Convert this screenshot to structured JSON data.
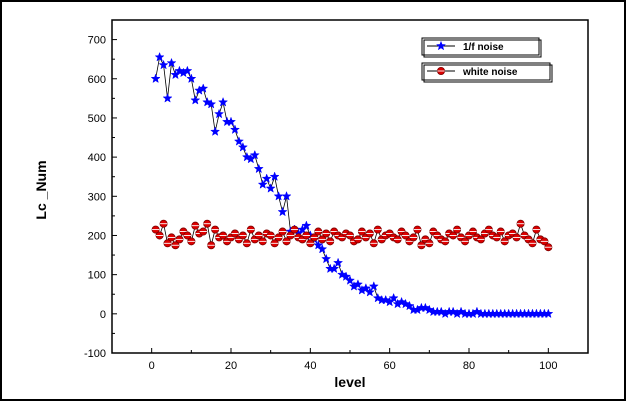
{
  "chart_data": {
    "type": "scatter",
    "xlabel": "level",
    "ylabel": "Lc _Num",
    "xlim": [
      -10,
      110
    ],
    "ylim": [
      -100,
      750
    ],
    "xticks": [
      0,
      20,
      40,
      60,
      80,
      100
    ],
    "yticks": [
      -100,
      0,
      100,
      200,
      300,
      400,
      500,
      600,
      700
    ],
    "legend_position": "top-right",
    "grid": false,
    "series": [
      {
        "name": "1/f noise",
        "marker": "star",
        "color": "#0000ff",
        "line_color": "#000000",
        "x": [
          1,
          2,
          3,
          4,
          5,
          6,
          7,
          8,
          9,
          10,
          11,
          12,
          13,
          14,
          15,
          16,
          17,
          18,
          19,
          20,
          21,
          22,
          23,
          24,
          25,
          26,
          27,
          28,
          29,
          30,
          31,
          32,
          33,
          34,
          35,
          36,
          37,
          38,
          39,
          40,
          41,
          42,
          43,
          44,
          45,
          46,
          47,
          48,
          49,
          50,
          51,
          52,
          53,
          54,
          55,
          56,
          57,
          58,
          59,
          60,
          61,
          62,
          63,
          64,
          65,
          66,
          67,
          68,
          69,
          70,
          71,
          72,
          73,
          74,
          75,
          76,
          77,
          78,
          79,
          80,
          81,
          82,
          83,
          84,
          85,
          86,
          87,
          88,
          89,
          90,
          91,
          92,
          93,
          94,
          95,
          96,
          97,
          98,
          99,
          100
        ],
        "y": [
          600,
          655,
          635,
          550,
          640,
          610,
          620,
          615,
          620,
          600,
          545,
          570,
          575,
          540,
          535,
          465,
          510,
          540,
          490,
          490,
          470,
          440,
          425,
          400,
          395,
          405,
          370,
          330,
          345,
          320,
          350,
          300,
          260,
          300,
          210,
          215,
          205,
          215,
          225,
          200,
          190,
          175,
          165,
          140,
          115,
          115,
          130,
          100,
          95,
          85,
          70,
          75,
          60,
          65,
          55,
          70,
          40,
          35,
          35,
          30,
          40,
          25,
          30,
          25,
          20,
          10,
          10,
          15,
          15,
          10,
          5,
          5,
          5,
          0,
          5,
          5,
          0,
          5,
          0,
          0,
          0,
          5,
          0,
          0,
          0,
          0,
          0,
          0,
          0,
          0,
          0,
          0,
          0,
          0,
          0,
          0,
          0,
          0,
          0,
          0
        ]
      },
      {
        "name": "white noise",
        "marker": "circle",
        "color": "#dd0000",
        "line_color": "#000000",
        "x": [
          1,
          2,
          3,
          4,
          5,
          6,
          7,
          8,
          9,
          10,
          11,
          12,
          13,
          14,
          15,
          16,
          17,
          18,
          19,
          20,
          21,
          22,
          23,
          24,
          25,
          26,
          27,
          28,
          29,
          30,
          31,
          32,
          33,
          34,
          35,
          36,
          37,
          38,
          39,
          40,
          41,
          42,
          43,
          44,
          45,
          46,
          47,
          48,
          49,
          50,
          51,
          52,
          53,
          54,
          55,
          56,
          57,
          58,
          59,
          60,
          61,
          62,
          63,
          64,
          65,
          66,
          67,
          68,
          69,
          70,
          71,
          72,
          73,
          74,
          75,
          76,
          77,
          78,
          79,
          80,
          81,
          82,
          83,
          84,
          85,
          86,
          87,
          88,
          89,
          90,
          91,
          92,
          93,
          94,
          95,
          96,
          97,
          98,
          99,
          100
        ],
        "y": [
          215,
          200,
          230,
          180,
          195,
          175,
          190,
          210,
          200,
          185,
          225,
          205,
          210,
          230,
          175,
          215,
          195,
          200,
          185,
          195,
          205,
          190,
          200,
          180,
          215,
          190,
          200,
          185,
          205,
          200,
          180,
          195,
          210,
          185,
          200,
          215,
          195,
          190,
          200,
          180,
          195,
          210,
          190,
          205,
          185,
          210,
          200,
          195,
          205,
          200,
          185,
          190,
          210,
          195,
          205,
          180,
          215,
          190,
          200,
          205,
          195,
          190,
          210,
          200,
          185,
          195,
          215,
          175,
          190,
          180,
          210,
          200,
          190,
          185,
          205,
          200,
          215,
          195,
          185,
          200,
          210,
          195,
          190,
          205,
          215,
          200,
          195,
          210,
          185,
          200,
          205,
          195,
          230,
          200,
          190,
          180,
          215,
          190,
          185,
          170
        ]
      }
    ]
  }
}
